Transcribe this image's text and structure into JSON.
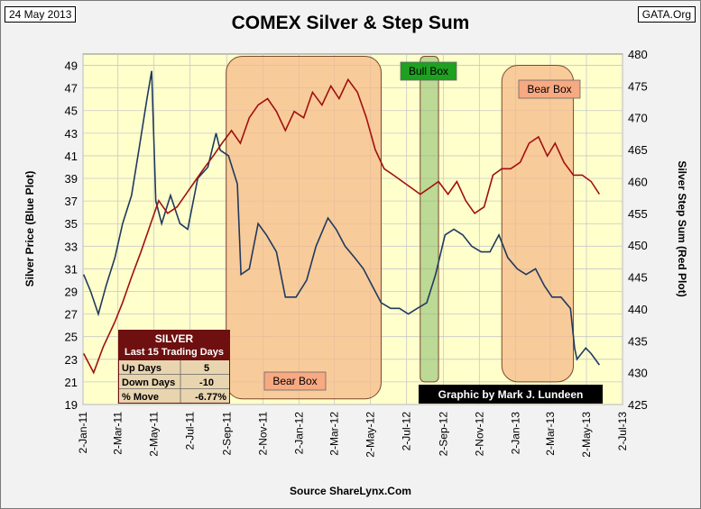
{
  "header": {
    "date": "24 May 2013",
    "brand": "GATA.Org",
    "title": "COMEX Silver & Step Sum",
    "source": "Source ShareLynx.Com"
  },
  "chart_data": {
    "type": "line",
    "title": "COMEX Silver & Step Sum",
    "ylabel": "Silver Price (Blue Plot)",
    "y2label": "Silver Step Sum (Red Plot)",
    "ylim": [
      19,
      50
    ],
    "y2lim": [
      425,
      480
    ],
    "yticks": [
      19,
      21,
      23,
      25,
      27,
      29,
      31,
      33,
      35,
      37,
      39,
      41,
      43,
      45,
      47,
      49
    ],
    "y2ticks": [
      425,
      430,
      435,
      440,
      445,
      450,
      455,
      460,
      465,
      470,
      475,
      480
    ],
    "xticks": [
      "2-Jan-11",
      "2-Mar-11",
      "2-May-11",
      "2-Jul-11",
      "2-Sep-11",
      "2-Nov-11",
      "2-Jan-12",
      "2-Mar-12",
      "2-May-12",
      "2-Jul-12",
      "2-Sep-12",
      "2-Nov-12",
      "2-Jan-13",
      "2-Mar-13",
      "2-May-13",
      "2-Jul-13"
    ],
    "grid": true,
    "colors": {
      "plot_bg": "#ffffcc",
      "bear_box": "#f5b98a",
      "bull_box": "#8fbf70",
      "silver": "#1f3a5f",
      "step_sum": "#a01010"
    },
    "series": [
      {
        "name": "Silver Price (Blue Plot)",
        "axis": "left",
        "x": [
          "2011-01-03",
          "2011-01-15",
          "2011-01-28",
          "2011-02-10",
          "2011-02-25",
          "2011-03-10",
          "2011-03-25",
          "2011-04-08",
          "2011-04-20",
          "2011-04-28",
          "2011-05-05",
          "2011-05-15",
          "2011-05-30",
          "2011-06-15",
          "2011-06-28",
          "2011-07-15",
          "2011-08-01",
          "2011-08-15",
          "2011-08-22",
          "2011-09-05",
          "2011-09-20",
          "2011-09-26",
          "2011-10-10",
          "2011-10-25",
          "2011-11-08",
          "2011-11-25",
          "2011-12-10",
          "2011-12-28",
          "2012-01-15",
          "2012-01-31",
          "2012-02-20",
          "2012-03-05",
          "2012-03-20",
          "2012-04-05",
          "2012-04-20",
          "2012-05-05",
          "2012-05-20",
          "2012-06-05",
          "2012-06-20",
          "2012-07-05",
          "2012-07-20",
          "2012-08-05",
          "2012-08-20",
          "2012-09-05",
          "2012-09-20",
          "2012-10-05",
          "2012-10-20",
          "2012-11-05",
          "2012-11-20",
          "2012-12-05",
          "2012-12-20",
          "2013-01-05",
          "2013-01-20",
          "2013-02-05",
          "2013-02-20",
          "2013-03-05",
          "2013-03-20",
          "2013-04-05",
          "2013-04-12",
          "2013-04-16",
          "2013-05-01",
          "2013-05-10",
          "2013-05-24"
        ],
        "values": [
          30.5,
          29.0,
          27.0,
          29.5,
          32.0,
          35.0,
          37.5,
          42.0,
          46.0,
          48.5,
          37.0,
          35.0,
          37.5,
          35.0,
          34.5,
          39.0,
          40.0,
          43.0,
          41.5,
          41.0,
          38.5,
          30.5,
          31.0,
          35.0,
          34.0,
          32.5,
          28.5,
          28.5,
          30.0,
          33.0,
          35.5,
          34.5,
          33.0,
          32.0,
          31.0,
          29.5,
          28.0,
          27.5,
          27.5,
          27.0,
          27.5,
          28.0,
          30.5,
          34.0,
          34.5,
          34.0,
          33.0,
          32.5,
          32.5,
          34.0,
          32.0,
          31.0,
          30.5,
          31.0,
          29.5,
          28.5,
          28.5,
          27.5,
          24.0,
          23.0,
          24.0,
          23.5,
          22.5
        ]
      },
      {
        "name": "Silver Step Sum (Red Plot)",
        "axis": "right",
        "x": [
          "2011-01-03",
          "2011-01-20",
          "2011-02-05",
          "2011-02-25",
          "2011-03-10",
          "2011-03-25",
          "2011-04-10",
          "2011-04-25",
          "2011-05-10",
          "2011-05-25",
          "2011-06-10",
          "2011-06-25",
          "2011-07-10",
          "2011-07-25",
          "2011-08-10",
          "2011-08-25",
          "2011-09-10",
          "2011-09-25",
          "2011-10-10",
          "2011-10-25",
          "2011-11-10",
          "2011-11-25",
          "2011-12-10",
          "2011-12-25",
          "2012-01-10",
          "2012-01-25",
          "2012-02-10",
          "2012-02-25",
          "2012-03-10",
          "2012-03-25",
          "2012-04-10",
          "2012-04-25",
          "2012-05-10",
          "2012-05-25",
          "2012-06-10",
          "2012-06-25",
          "2012-07-10",
          "2012-07-25",
          "2012-08-10",
          "2012-08-25",
          "2012-09-10",
          "2012-09-25",
          "2012-10-10",
          "2012-10-25",
          "2012-11-10",
          "2012-11-25",
          "2012-12-10",
          "2012-12-25",
          "2013-01-10",
          "2013-01-25",
          "2013-02-10",
          "2013-02-25",
          "2013-03-10",
          "2013-03-25",
          "2013-04-10",
          "2013-04-25",
          "2013-05-10",
          "2013-05-24"
        ],
        "values": [
          433,
          430,
          434,
          438,
          441,
          445,
          449,
          453,
          457,
          455,
          456,
          458,
          460,
          462,
          464,
          466,
          468,
          466,
          470,
          472,
          473,
          471,
          468,
          471,
          470,
          474,
          472,
          475,
          473,
          476,
          474,
          470,
          465,
          462,
          461,
          460,
          459,
          458,
          459,
          460,
          458,
          460,
          457,
          455,
          456,
          461,
          462,
          462,
          463,
          466,
          467,
          464,
          466,
          463,
          461,
          461,
          460,
          458
        ]
      }
    ]
  },
  "shaded_regions": [
    {
      "label": "Bear Box",
      "x": [
        "2011-09-01",
        "2012-05-20"
      ],
      "range": [
        19.5,
        49.8
      ]
    },
    {
      "label": "Bull Box",
      "x": [
        "2012-07-25",
        "2012-08-25"
      ],
      "range": [
        21.0,
        49.8
      ]
    },
    {
      "label": "Bear Box",
      "x": [
        "2012-12-10",
        "2013-04-10"
      ],
      "range": [
        21.0,
        49.0
      ]
    }
  ],
  "silver_table": {
    "title": "SILVER",
    "subtitle": "Last 15 Trading Days",
    "rows": [
      {
        "label": "Up Days",
        "value": "5"
      },
      {
        "label": "Down Days",
        "value": "-10"
      },
      {
        "label": "% Move",
        "value": "-6.77%"
      }
    ]
  },
  "credit": "Graphic by Mark J. Lundeen"
}
